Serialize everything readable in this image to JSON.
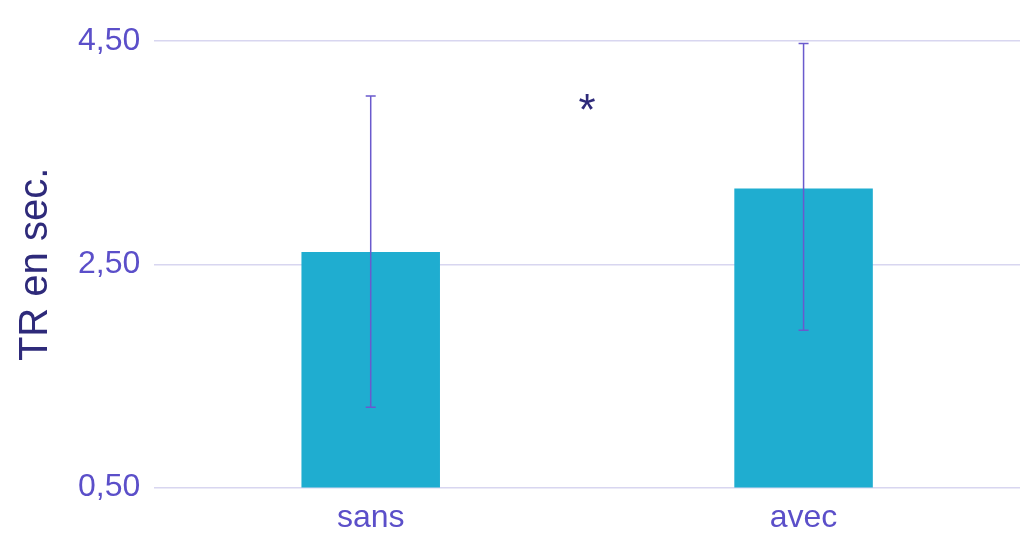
{
  "chart_data": {
    "type": "bar",
    "ylabel": "TR en sec.",
    "categories": [
      "sans",
      "avec"
    ],
    "values": [
      2.61,
      3.18
    ],
    "color": "#1fadd0",
    "errors": [
      [
        1.22,
        4.01
      ],
      [
        1.91,
        4.48
      ]
    ],
    "ylim": [
      0.5,
      4.5
    ],
    "yticks": [
      {
        "value": 0.5,
        "label": "0,50"
      },
      {
        "value": 2.5,
        "label": "2,50"
      },
      {
        "value": 4.5,
        "label": "4,50"
      }
    ],
    "grid": "y",
    "legend": false,
    "annotations": [
      "*"
    ]
  }
}
